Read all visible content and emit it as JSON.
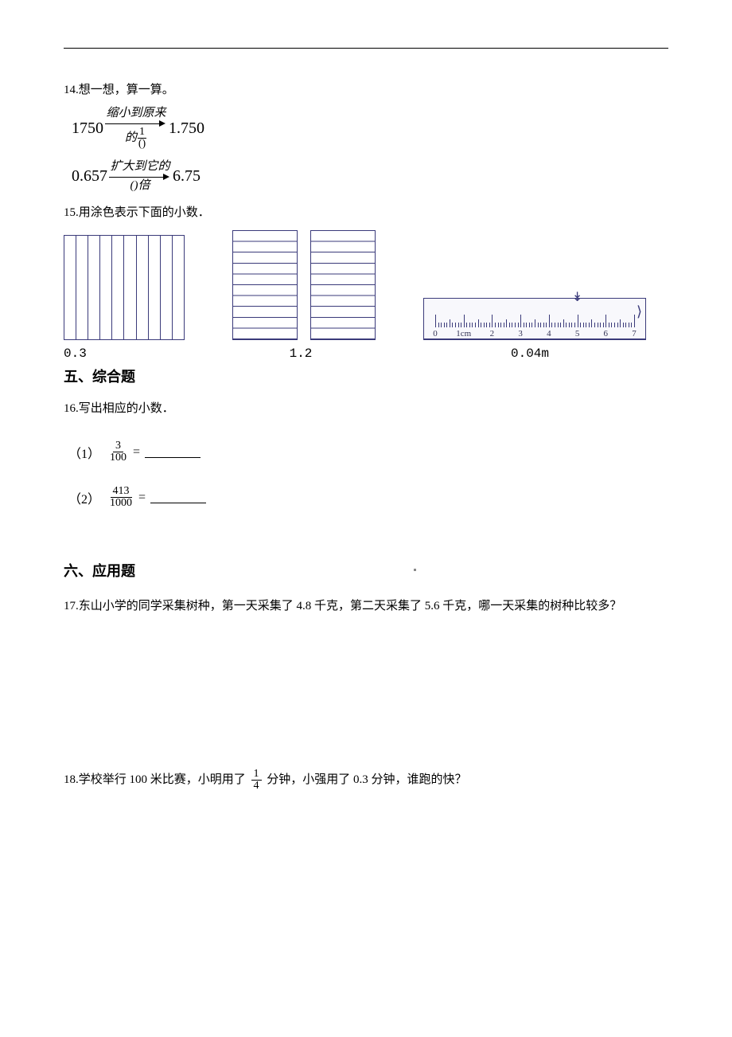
{
  "q14": {
    "number": "14.",
    "text": "想一想，算一算。"
  },
  "formula1": {
    "lhs": "1750",
    "top": "缩小到原来",
    "bot_prefix": "的",
    "frac_num": "1",
    "frac_den": "()",
    "rhs": "1.750"
  },
  "formula2": {
    "lhs": "0.657",
    "top": "扩大到它的",
    "bot": "()倍",
    "rhs": "6.75"
  },
  "q15": {
    "number": "15.",
    "text": "用涂色表示下面的小数．"
  },
  "visual_labels": {
    "a": "0.3",
    "b": "1.2",
    "c": "0.04m"
  },
  "ruler": {
    "unit_label": "1cm",
    "numbers": [
      "0",
      "1cm",
      "2",
      "3",
      "4",
      "5",
      "6",
      "7"
    ],
    "pointer_at": 5,
    "color": "#3a3a7a"
  },
  "section5": "五、综合题",
  "q16": {
    "number": "16.",
    "text": "写出相应的小数．"
  },
  "q16_1": {
    "label": "（1）",
    "num": "3",
    "den": "100",
    "eq": "="
  },
  "q16_2": {
    "label": "（2）",
    "num": "413",
    "den": "1000",
    "eq": "="
  },
  "section6": "六、应用题",
  "q17": {
    "number": "17.",
    "text": "东山小学的同学采集树种，第一天采集了 4.8 千克，第二天采集了 5.6 千克，哪一天采集的树种比较多？"
  },
  "q18": {
    "number": "18.",
    "pre": "学校举行 100 米比赛，小明用了 ",
    "frac_num": "1",
    "frac_den": "4",
    "post": " 分钟，小强用了 0.3 分钟，谁跑的快？"
  }
}
